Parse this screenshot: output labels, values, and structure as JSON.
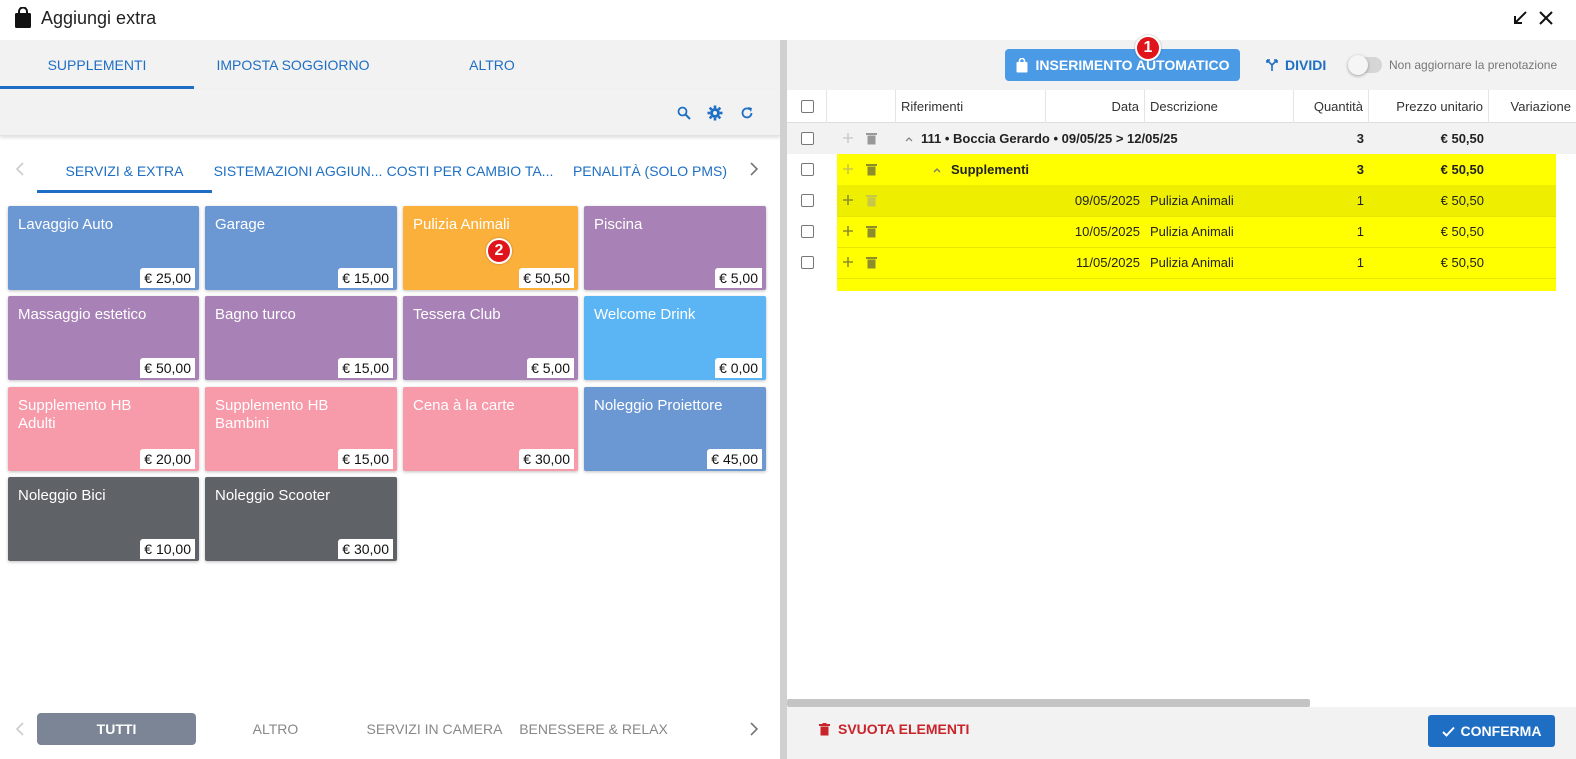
{
  "window": {
    "title": "Aggiungi extra"
  },
  "left": {
    "top_tabs": [
      {
        "label": "SUPPLEMENTI",
        "active": true
      },
      {
        "label": "IMPOSTA SOGGIORNO",
        "active": false
      },
      {
        "label": "ALTRO",
        "active": false
      }
    ],
    "category_tabs": [
      {
        "label": "SERVIZI & EXTRA",
        "active": true
      },
      {
        "label": "SISTEMAZIONI AGGIUN...",
        "active": false
      },
      {
        "label": "COSTI PER CAMBIO TA...",
        "active": false
      },
      {
        "label": "PENALITÀ (SOLO PMS)",
        "active": false
      }
    ],
    "tiles": [
      {
        "name": "Lavaggio Auto",
        "price": "€ 25,00",
        "color": "#6b97d3"
      },
      {
        "name": "Garage",
        "price": "€ 15,00",
        "color": "#6b97d3"
      },
      {
        "name": "Pulizia Animali",
        "price": "€ 50,50",
        "color": "#fbb03b"
      },
      {
        "name": "Piscina",
        "price": "€ 5,00",
        "color": "#a882b6"
      },
      {
        "name": "Massaggio estetico",
        "price": "€ 50,00",
        "color": "#a882b6"
      },
      {
        "name": "Bagno turco",
        "price": "€ 15,00",
        "color": "#a882b6"
      },
      {
        "name": "Tessera Club",
        "price": "€ 5,00",
        "color": "#a882b6"
      },
      {
        "name": "Welcome Drink",
        "price": "€ 0,00",
        "color": "#5bb4f3"
      },
      {
        "name": "Supplemento HB Adulti",
        "price": "€ 20,00",
        "color": "#f79aa9"
      },
      {
        "name": "Supplemento HB Bambini",
        "price": "€ 15,00",
        "color": "#f79aa9"
      },
      {
        "name": "Cena à la carte",
        "price": "€ 30,00",
        "color": "#f79aa9"
      },
      {
        "name": "Noleggio Proiettore",
        "price": "€ 45,00",
        "color": "#6b97d3"
      },
      {
        "name": "Noleggio Bici",
        "price": "€ 10,00",
        "color": "#5f6267"
      },
      {
        "name": "Noleggio Scooter",
        "price": "€ 30,00",
        "color": "#5f6267"
      }
    ],
    "bottom_tabs": [
      {
        "label": "TUTTI",
        "active": true
      },
      {
        "label": "ALTRO",
        "active": false
      },
      {
        "label": "SERVIZI IN CAMERA",
        "active": false
      },
      {
        "label": "BENESSERE & RELAX",
        "active": false
      }
    ]
  },
  "badges": {
    "one": "1",
    "two": "2"
  },
  "right": {
    "auto_button": "INSERIMENTO AUTOMATICO",
    "divide_button": "DIVIDI",
    "toggle_label": "Non aggiornare la prenotazione",
    "columns": [
      "Riferimenti",
      "Data",
      "Descrizione",
      "Quantità",
      "Prezzo unitario",
      "Variazione"
    ],
    "group_row": {
      "label": "111 • Boccia Gerardo • 09/05/25 > 12/05/25",
      "qty": "3",
      "price": "€ 50,50"
    },
    "sub_group_row": {
      "label": "Supplementi",
      "qty": "3",
      "price": "€ 50,50"
    },
    "rows": [
      {
        "date": "09/05/2025",
        "desc": "Pulizia Animali",
        "qty": "1",
        "price": "€ 50,50"
      },
      {
        "date": "10/05/2025",
        "desc": "Pulizia Animali",
        "qty": "1",
        "price": "€ 50,50"
      },
      {
        "date": "11/05/2025",
        "desc": "Pulizia Animali",
        "qty": "1",
        "price": "€ 50,50"
      }
    ],
    "clear_button": "SVUOTA ELEMENTI",
    "confirm_button": "CONFERMA"
  },
  "colors": {
    "accent": "#1e6fc4",
    "highlight": "#ffff00",
    "danger": "#c9242b"
  },
  "icons": [
    "shopping-bag-icon",
    "minimize-icon",
    "close-icon",
    "search-icon",
    "gear-icon",
    "refresh-icon",
    "chevron-left-icon",
    "chevron-right-icon",
    "split-icon",
    "plus-icon",
    "trash-icon",
    "check-icon"
  ]
}
